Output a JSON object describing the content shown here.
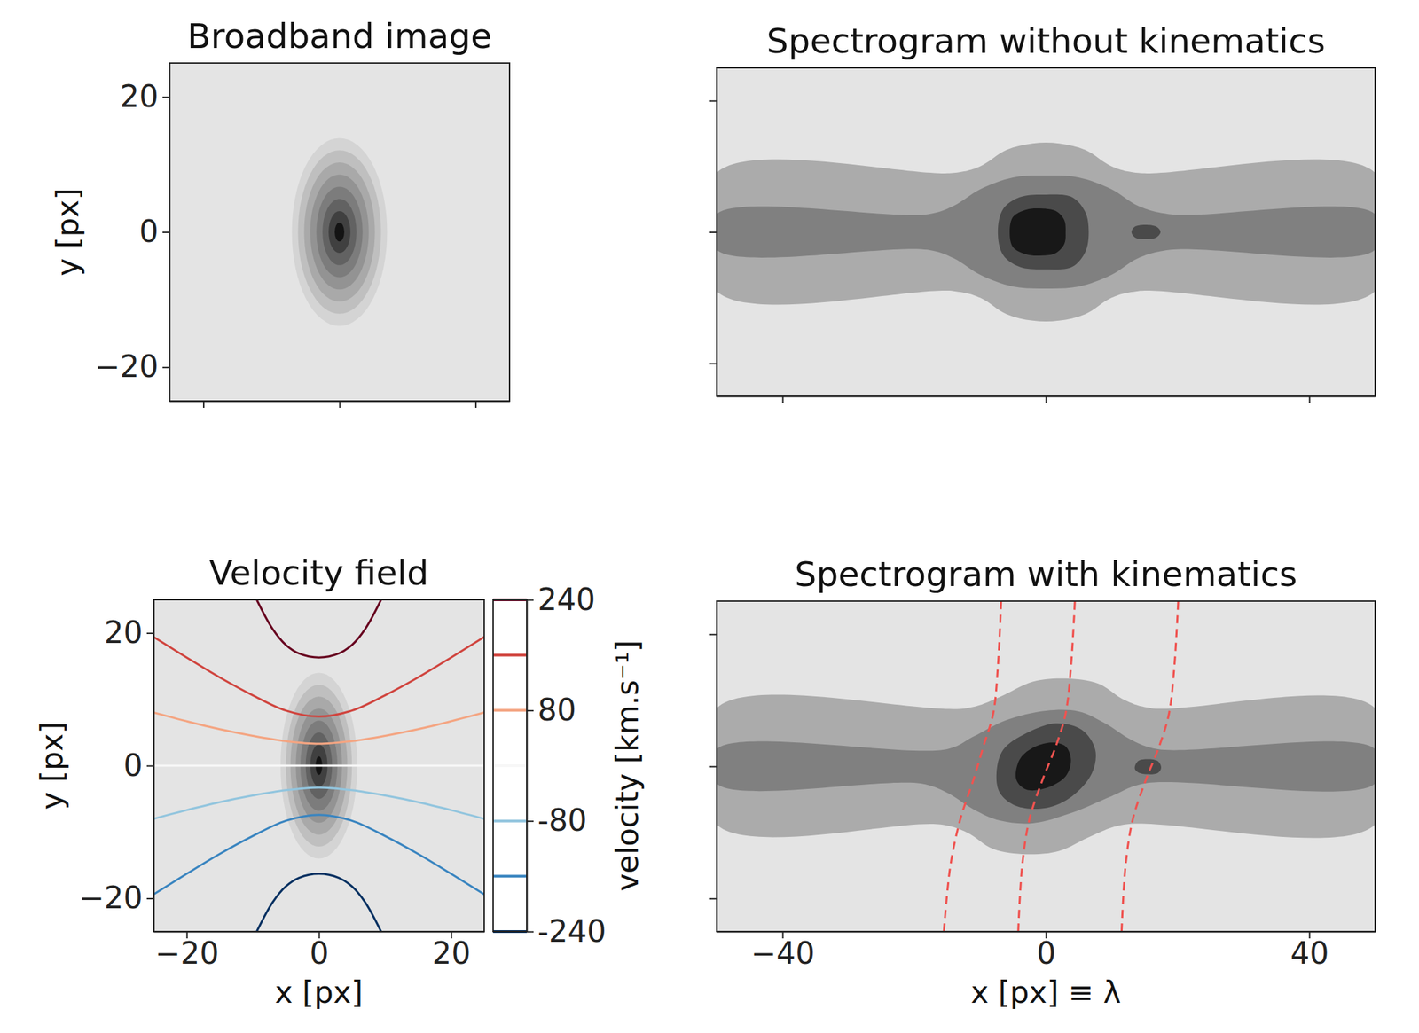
{
  "chart_data": [
    {
      "type": "contour",
      "title": "Broadband image",
      "ylabel": "y [px]",
      "xlim": [
        -25,
        25
      ],
      "ylim": [
        -25,
        25
      ],
      "xticks": [
        -20,
        0,
        20
      ],
      "yticks": [
        -20,
        0,
        20
      ],
      "tick_labels": "y",
      "ellipses": {
        "center": [
          0,
          0
        ],
        "rx": [
          7.0,
          6.1,
          5.2,
          4.3,
          3.4,
          2.5,
          1.6,
          0.7
        ],
        "ry": [
          13.9,
          12.1,
          10.3,
          8.5,
          6.7,
          4.9,
          3.1,
          1.4
        ]
      },
      "colors": [
        "#d4d4d4",
        "#bfbfbf",
        "#a9a9a9",
        "#939393",
        "#7c7c7c",
        "#626262",
        "#404040",
        "#141414"
      ]
    },
    {
      "type": "contour",
      "title": "Spectrogram without kinematics",
      "xlim": [
        -50,
        50
      ],
      "ylim": [
        -25,
        25
      ],
      "xticks": [
        -40,
        0,
        40
      ],
      "yticks": [
        -20,
        0,
        20
      ],
      "tick_labels": false,
      "regions": [
        {
          "x": [
            -50,
            -14,
            -10,
            -6,
            -2,
            2,
            6,
            10,
            14,
            50,
            50,
            14,
            10,
            6,
            2,
            -2,
            -6,
            -10,
            -14,
            -50
          ],
          "y": [
            9,
            9,
            10,
            12.5,
            13.5,
            13.5,
            12.5,
            10,
            9,
            9,
            -9,
            -9,
            -10,
            -12.5,
            -13.5,
            -13.5,
            -12.5,
            -10,
            -9,
            -9
          ]
        },
        {
          "x": [
            -50,
            -18,
            -14,
            -10,
            -5,
            0,
            5,
            10,
            14,
            19,
            50,
            50,
            19,
            14,
            10,
            5,
            0,
            -5,
            -10,
            -14,
            -18,
            -50
          ],
          "y": [
            2.7,
            2.7,
            4,
            6.5,
            8.3,
            8.6,
            8.3,
            6.5,
            4,
            2.7,
            2.7,
            -2.7,
            -2.7,
            -4,
            -6.5,
            -8.3,
            -8.6,
            -8.3,
            -6.5,
            -4,
            -2.7,
            -2.7
          ]
        },
        {
          "x": [
            -7.3,
            -6.5,
            -4,
            0,
            4,
            6,
            6.5,
            6,
            4,
            0,
            -4,
            -6.5
          ],
          "y": [
            0,
            3.5,
            5.3,
            5.7,
            5.3,
            3,
            0,
            -3,
            -5.3,
            -5.7,
            -5.3,
            -3.5
          ]
        },
        {
          "x": [
            13,
            13.5,
            15,
            16.8,
            17.4,
            16.8,
            15,
            13.5
          ],
          "y": [
            0,
            0.8,
            1.1,
            0.8,
            0,
            -0.8,
            -1.1,
            -0.8
          ]
        },
        {
          "x": [
            -5.5,
            -5,
            -3,
            -1,
            1.5,
            2.8,
            3,
            2.8,
            1.5,
            -1,
            -3,
            -5
          ],
          "y": [
            0,
            2.3,
            3.4,
            3.6,
            3.2,
            1.8,
            0,
            -1.8,
            -3.2,
            -3.6,
            -3.4,
            -2.3
          ]
        }
      ],
      "colors": [
        "#ababab",
        "#808080",
        "#4a4a4a",
        "#4a4a4a",
        "#181818"
      ]
    },
    {
      "type": "contour",
      "title": "Velocity field",
      "xlabel": "x [px]",
      "ylabel": "y [px]",
      "xlim": [
        -25,
        25
      ],
      "ylim": [
        -25,
        25
      ],
      "xticks": [
        -20,
        0,
        20
      ],
      "yticks": [
        -20,
        0,
        20
      ],
      "ellipses": {
        "center": [
          0,
          0
        ],
        "rx": [
          5.8,
          5.0,
          4.3,
          3.5,
          2.8,
          2.0,
          1.3,
          0.5
        ],
        "ry": [
          14.0,
          12.2,
          10.4,
          8.6,
          6.8,
          5.0,
          3.2,
          1.4
        ]
      },
      "colors": [
        "#d4d4d4",
        "#bfbfbf",
        "#a9a9a9",
        "#939393",
        "#7c7c7c",
        "#626262",
        "#404040",
        "#141414"
      ],
      "series": [
        {
          "value": 240,
          "color": "#67001f",
          "line_style": "solid",
          "x": [
            -9.4,
            -7,
            -5,
            -3,
            0,
            3,
            5,
            7,
            9.4
          ],
          "y": [
            25,
            20.6,
            18.2,
            16.9,
            16.3,
            16.9,
            18.2,
            20.6,
            25
          ]
        },
        {
          "value": 160,
          "color": "#d0453f",
          "line_style": "solid",
          "x": [
            -25,
            -20,
            -15,
            -10,
            -5,
            0,
            5,
            10,
            15,
            20,
            25
          ],
          "y": [
            19.4,
            16.3,
            13.3,
            10.6,
            8.3,
            7.4,
            8.3,
            10.6,
            13.3,
            16.3,
            19.4
          ]
        },
        {
          "value": 80,
          "color": "#f4a582",
          "line_style": "solid",
          "x": [
            -25,
            -20,
            -15,
            -10,
            -5,
            0,
            5,
            10,
            15,
            20,
            25
          ],
          "y": [
            8.0,
            6.7,
            5.5,
            4.5,
            3.7,
            3.3,
            3.7,
            4.5,
            5.5,
            6.7,
            8.0
          ]
        },
        {
          "value": 0,
          "color": "#f7f7f7",
          "line_style": "solid",
          "x": [
            -25,
            25
          ],
          "y": [
            0,
            0
          ]
        },
        {
          "value": -80,
          "color": "#92c5de",
          "line_style": "solid",
          "x": [
            -25,
            -20,
            -15,
            -10,
            -5,
            0,
            5,
            10,
            15,
            20,
            25
          ],
          "y": [
            -8.0,
            -6.7,
            -5.5,
            -4.5,
            -3.7,
            -3.3,
            -3.7,
            -4.5,
            -5.5,
            -6.7,
            -8.0
          ]
        },
        {
          "value": -160,
          "color": "#3a85c0",
          "line_style": "solid",
          "x": [
            -25,
            -20,
            -15,
            -10,
            -5,
            0,
            5,
            10,
            15,
            20,
            25
          ],
          "y": [
            -19.4,
            -16.3,
            -13.3,
            -10.6,
            -8.3,
            -7.4,
            -8.3,
            -10.6,
            -13.3,
            -16.3,
            -19.4
          ]
        },
        {
          "value": -240,
          "color": "#053061",
          "line_style": "solid",
          "x": [
            -9.4,
            -7,
            -5,
            -3,
            0,
            3,
            5,
            7,
            9.4
          ],
          "y": [
            -25,
            -20.6,
            -18.2,
            -16.9,
            -16.3,
            -16.9,
            -18.2,
            -20.6,
            -25
          ]
        }
      ],
      "clim": [
        -240,
        240
      ],
      "cticks": [
        240,
        80,
        -80,
        -240
      ],
      "clabel": "velocity [km.s⁻¹]"
    },
    {
      "type": "contour",
      "title": "Spectrogram with kinematics",
      "xlabel": "x [px] ≡ λ",
      "xlim": [
        -50,
        50
      ],
      "ylim": [
        -25,
        25
      ],
      "xticks": [
        -40,
        0,
        40
      ],
      "yticks": [
        -20,
        0,
        20
      ],
      "tick_labels": "x",
      "regions": [
        {
          "x": [
            -50,
            -12,
            -7,
            -2,
            3,
            8,
            12,
            16,
            50,
            50,
            12,
            7,
            2,
            -3,
            -8,
            -12,
            -16,
            -50
          ],
          "y": [
            8.8,
            8.8,
            10.5,
            12.8,
            13.3,
            12.5,
            10,
            8.8,
            8.8,
            -8.8,
            -8.8,
            -10.5,
            -12.8,
            -13.3,
            -12.5,
            -10,
            -8.8,
            -8.8
          ]
        },
        {
          "x": [
            -50,
            -15,
            -11,
            -6,
            0,
            5,
            9,
            13,
            17,
            50,
            50,
            15,
            10,
            4,
            -2,
            -7,
            -11,
            -15,
            -19,
            -50
          ],
          "y": [
            2.6,
            2.6,
            4.5,
            7,
            8.4,
            8.3,
            6.5,
            4,
            2.6,
            2.6,
            -2.6,
            -2.6,
            -4.5,
            -7,
            -8.6,
            -8.2,
            -6.5,
            -4,
            -2.6,
            -2.6
          ]
        },
        {
          "x": [
            -7.5,
            -6.5,
            -3,
            1.5,
            5.5,
            7.5,
            7,
            4,
            0,
            -4.5,
            -7
          ],
          "y": [
            -1,
            2.5,
            5,
            6.5,
            5.5,
            2.5,
            -1,
            -4.5,
            -6.3,
            -6,
            -4
          ]
        },
        {
          "x": [
            13.5,
            14,
            15.5,
            17,
            17.5,
            17,
            15.5,
            14
          ],
          "y": [
            -0.3,
            0.8,
            1.1,
            0.8,
            -0.2,
            -1,
            -1.2,
            -0.9
          ]
        },
        {
          "x": [
            -4.5,
            -4,
            -2,
            1,
            3,
            3.8,
            3,
            0,
            -3
          ],
          "y": [
            -2,
            1,
            2.8,
            3.6,
            3,
            1,
            -1.5,
            -3.3,
            -3.5
          ]
        }
      ],
      "colors": [
        "#ababab",
        "#808080",
        "#4a4a4a",
        "#4a4a4a",
        "#181818"
      ],
      "series": [
        {
          "color": "#ef5350",
          "line_style": "dashed",
          "x": [
            -15.5,
            -14.5,
            -13,
            -11,
            -9.5,
            -8,
            -7.3,
            -6.8
          ],
          "y": [
            -25,
            -15,
            -8,
            -2,
            3,
            8,
            15,
            25
          ]
        },
        {
          "color": "#ef5350",
          "line_style": "dashed",
          "x": [
            -4.2,
            -3.6,
            -2.5,
            -0.5,
            1.5,
            3,
            3.8,
            4.4
          ],
          "y": [
            -25,
            -15,
            -8,
            -2,
            3,
            8,
            15,
            25
          ]
        },
        {
          "color": "#ef5350",
          "line_style": "dashed",
          "x": [
            11.5,
            12.1,
            13.2,
            15.2,
            17.2,
            18.7,
            19.5,
            20.1
          ],
          "y": [
            -25,
            -15,
            -8,
            -2,
            3,
            8,
            15,
            25
          ]
        }
      ]
    }
  ]
}
